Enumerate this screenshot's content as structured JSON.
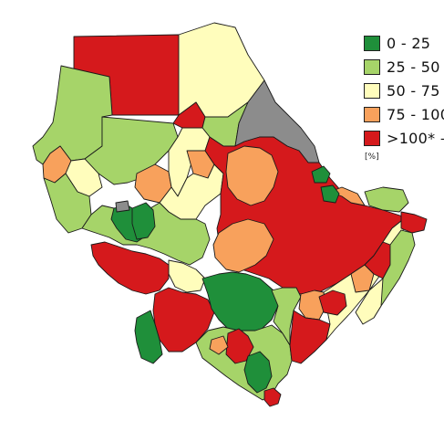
{
  "map": {
    "colors": {
      "0-25": "#1f8f3a",
      "25-50": "#a6d469",
      "50-75": "#fffdbc",
      "75-100": "#f8a15c",
      "gt100": "#d5191c",
      "nodata": "#8c8c8c"
    }
  },
  "legend": {
    "items": [
      {
        "label": "0 - 25",
        "color": "#1f8f3a"
      },
      {
        "label": "25 - 50",
        "color": "#a6d469"
      },
      {
        "label": "50 - 75",
        "color": "#fffdbc"
      },
      {
        "label": "75 - 100",
        "color": "#f8a15c"
      },
      {
        "label": ">100* —",
        "color": "#d5191c"
      }
    ],
    "unit": "[%]"
  }
}
